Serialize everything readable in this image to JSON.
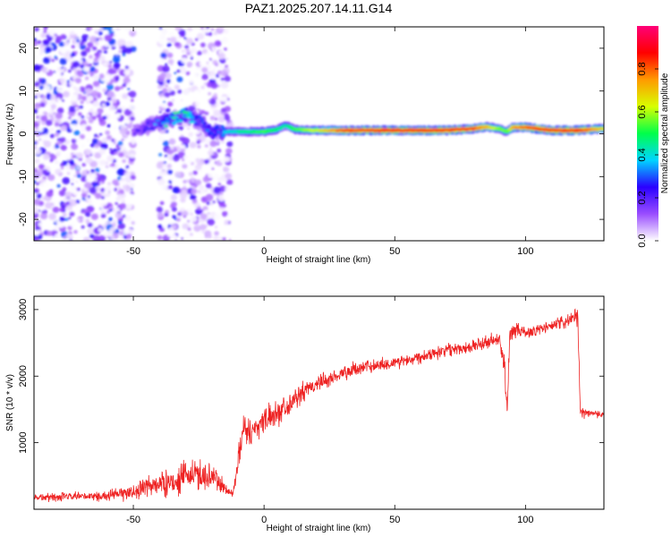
{
  "title": "PAZ1.2025.207.14.11.G14",
  "chart_data": [
    {
      "type": "heatmap",
      "xlabel": "Height of straight line (km)",
      "ylabel": "Frequency (Hz)",
      "xlim": [
        -88,
        130
      ],
      "ylim": [
        -25,
        25
      ],
      "xticks": [
        -50,
        0,
        50,
        100
      ],
      "yticks": [
        -20,
        -10,
        0,
        10,
        20
      ],
      "colorbar": {
        "label": "Normalized spectral amplitude",
        "range": [
          0,
          1
        ],
        "ticks": [
          "0.0",
          "0.2",
          "0.4",
          "0.6",
          "0.8"
        ],
        "colors": [
          "#ffffff",
          "#9a4dff",
          "#2a00ff",
          "#00d5ff",
          "#00ff4a",
          "#d8ff00",
          "#ff9a00",
          "#ff0000",
          "#ff0078"
        ]
      },
      "ridge": {
        "x": [
          -50,
          -46,
          -40,
          -35,
          -30,
          -25,
          -20,
          -15,
          -10,
          -5,
          0,
          5,
          8,
          12,
          20,
          30,
          50,
          70,
          80,
          85,
          90,
          93,
          95,
          100,
          110,
          120,
          130
        ],
        "freq": [
          0.5,
          1.5,
          2.5,
          3.5,
          4.5,
          3.0,
          0.5,
          0.5,
          0.5,
          0.5,
          0.5,
          1.0,
          2.0,
          1.0,
          0.8,
          0.8,
          0.8,
          0.8,
          1.2,
          1.6,
          1.2,
          0.5,
          1.5,
          1.5,
          0.8,
          0.8,
          1.2
        ],
        "amplitude": [
          0.15,
          0.2,
          0.3,
          0.35,
          0.35,
          0.3,
          0.25,
          0.4,
          0.45,
          0.5,
          0.55,
          0.5,
          0.45,
          0.55,
          0.65,
          0.85,
          0.9,
          0.9,
          0.85,
          0.75,
          0.6,
          0.55,
          0.75,
          0.85,
          0.9,
          0.9,
          0.7
        ]
      }
    },
    {
      "type": "line",
      "xlabel": "Height of straight line (km)",
      "ylabel": "SNR (10 * v/v)",
      "xlim": [
        -88,
        130
      ],
      "ylim": [
        0,
        3200
      ],
      "xticks": [
        -50,
        0,
        50,
        100
      ],
      "yticks": [
        1000,
        2000,
        3000
      ],
      "color": "#ee2222",
      "series": [
        {
          "x": [
            -88,
            -80,
            -70,
            -60,
            -55,
            -50,
            -45,
            -40,
            -35,
            -30,
            -25,
            -20,
            -15,
            -12,
            -10,
            -8,
            -5,
            0,
            5,
            10,
            15,
            20,
            25,
            30,
            40,
            50,
            60,
            70,
            80,
            85,
            90,
            92,
            93,
            94,
            95,
            100,
            110,
            118,
            120,
            121,
            125,
            130
          ],
          "values": [
            180,
            180,
            190,
            200,
            230,
            260,
            330,
            380,
            400,
            500,
            520,
            500,
            320,
            220,
            700,
            1250,
            1150,
            1350,
            1450,
            1600,
            1750,
            1880,
            1950,
            2050,
            2150,
            2200,
            2300,
            2400,
            2450,
            2500,
            2550,
            2100,
            1500,
            2600,
            2700,
            2650,
            2750,
            2850,
            2900,
            1450,
            1450,
            1420
          ],
          "noise": [
            90,
            90,
            90,
            100,
            140,
            160,
            220,
            250,
            260,
            300,
            330,
            300,
            150,
            90,
            220,
            350,
            300,
            250,
            260,
            220,
            200,
            170,
            160,
            150,
            140,
            140,
            130,
            130,
            130,
            150,
            170,
            300,
            300,
            200,
            150,
            130,
            120,
            150,
            200,
            120,
            80,
            70
          ]
        }
      ]
    }
  ]
}
